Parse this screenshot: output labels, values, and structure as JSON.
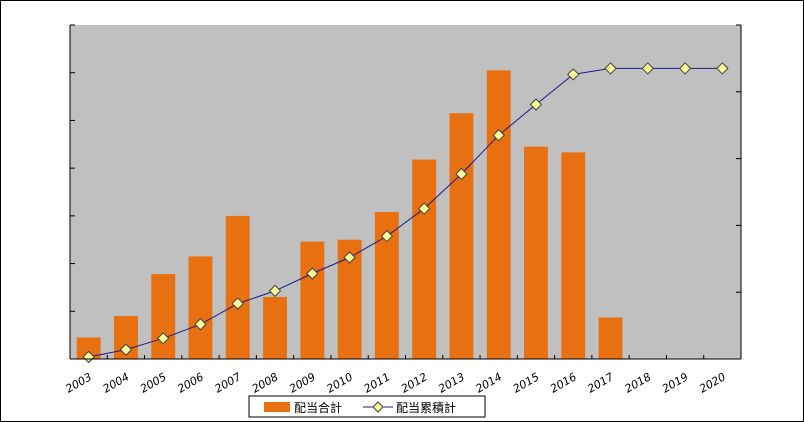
{
  "chart_data": {
    "type": "bar",
    "categories": [
      "2003",
      "2004",
      "2005",
      "2006",
      "2007",
      "2008",
      "2009",
      "2010",
      "2011",
      "2012",
      "2013",
      "2014",
      "2015",
      "2016",
      "2017",
      "2018",
      "2019",
      "2020"
    ],
    "ylim_left": [
      0,
      7
    ],
    "ylim_right": [
      0,
      5
    ],
    "grid": false,
    "legend_position": "bottom",
    "series": [
      {
        "name": "配当合計",
        "type": "bar",
        "axis": "left",
        "color": "#E87010",
        "values": [
          0.45,
          0.9,
          1.78,
          2.15,
          3.0,
          1.3,
          2.46,
          2.5,
          3.08,
          4.18,
          5.15,
          6.05,
          4.45,
          4.33,
          0.87,
          0,
          0,
          0
        ]
      },
      {
        "name": "配当累積計",
        "type": "line",
        "axis": "right",
        "color": "#1A1A8C",
        "marker_fill": "#FFFF99",
        "values": [
          0.03,
          0.14,
          0.31,
          0.52,
          0.83,
          1.02,
          1.28,
          1.52,
          1.84,
          2.25,
          2.77,
          3.35,
          3.81,
          4.26,
          4.35,
          4.35,
          4.35,
          4.35
        ]
      }
    ]
  },
  "colors": {
    "plot_background": "#C0C0C0",
    "chart_background": "#FFFFFF"
  }
}
